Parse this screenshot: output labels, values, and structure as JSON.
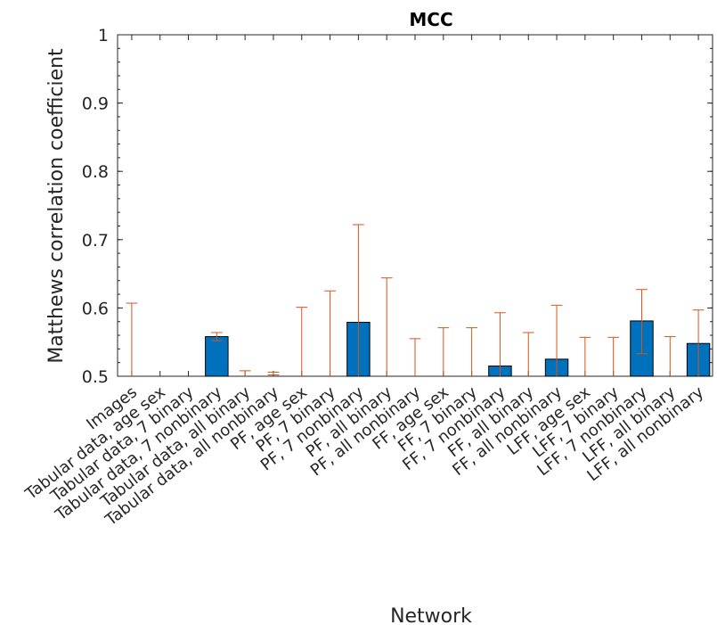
{
  "chart_data": {
    "type": "bar",
    "title": "MCC",
    "xlabel": "Network",
    "ylabel": "Matthews correlation coefficient",
    "ylim": [
      0.5,
      1
    ],
    "yticks": [
      "0.5",
      "0.6",
      "0.7",
      "0.8",
      "0.9",
      "1"
    ],
    "grid": false,
    "colors": {
      "bar": "#0072BD",
      "bar_edge": "#000000",
      "error": "#D95319",
      "axis": "#262626"
    },
    "categories": [
      "Images",
      "Tabular data, age sex",
      "Tabular data, 7 binary",
      "Tabular data, 7 nonbinary",
      "Tabular data, all binary",
      "Tabular data, all nonbinary",
      "PF, age sex",
      "PF, 7 binary",
      "PF, 7 nonbinary",
      "PF, all binary",
      "PF, all nonbinary",
      "FF, age sex",
      "FF, 7 binary",
      "FF, 7 nonbinary",
      "FF, all binary",
      "FF, all nonbinary",
      "LFF, age sex",
      "LFF, 7 binary",
      "LFF, 7 nonbinary",
      "LFF, all binary",
      "LFF, all nonbinary"
    ],
    "values": [
      0.5,
      0.5,
      0.5,
      0.558,
      0.5,
      0.5,
      0.5,
      0.5,
      0.579,
      0.5,
      0.5,
      0.5,
      0.5,
      0.515,
      0.5,
      0.525,
      0.5,
      0.5,
      0.581,
      0.5,
      0.548
    ],
    "error_low": [
      null,
      null,
      null,
      0.552,
      null,
      0.502,
      null,
      null,
      null,
      null,
      null,
      null,
      null,
      null,
      null,
      null,
      null,
      null,
      0.533,
      null,
      0.5
    ],
    "error_high": [
      0.607,
      null,
      null,
      0.564,
      0.508,
      0.506,
      0.601,
      0.625,
      0.722,
      0.644,
      0.555,
      0.571,
      0.571,
      0.593,
      0.564,
      0.604,
      0.557,
      0.557,
      0.627,
      0.558,
      0.597
    ]
  }
}
